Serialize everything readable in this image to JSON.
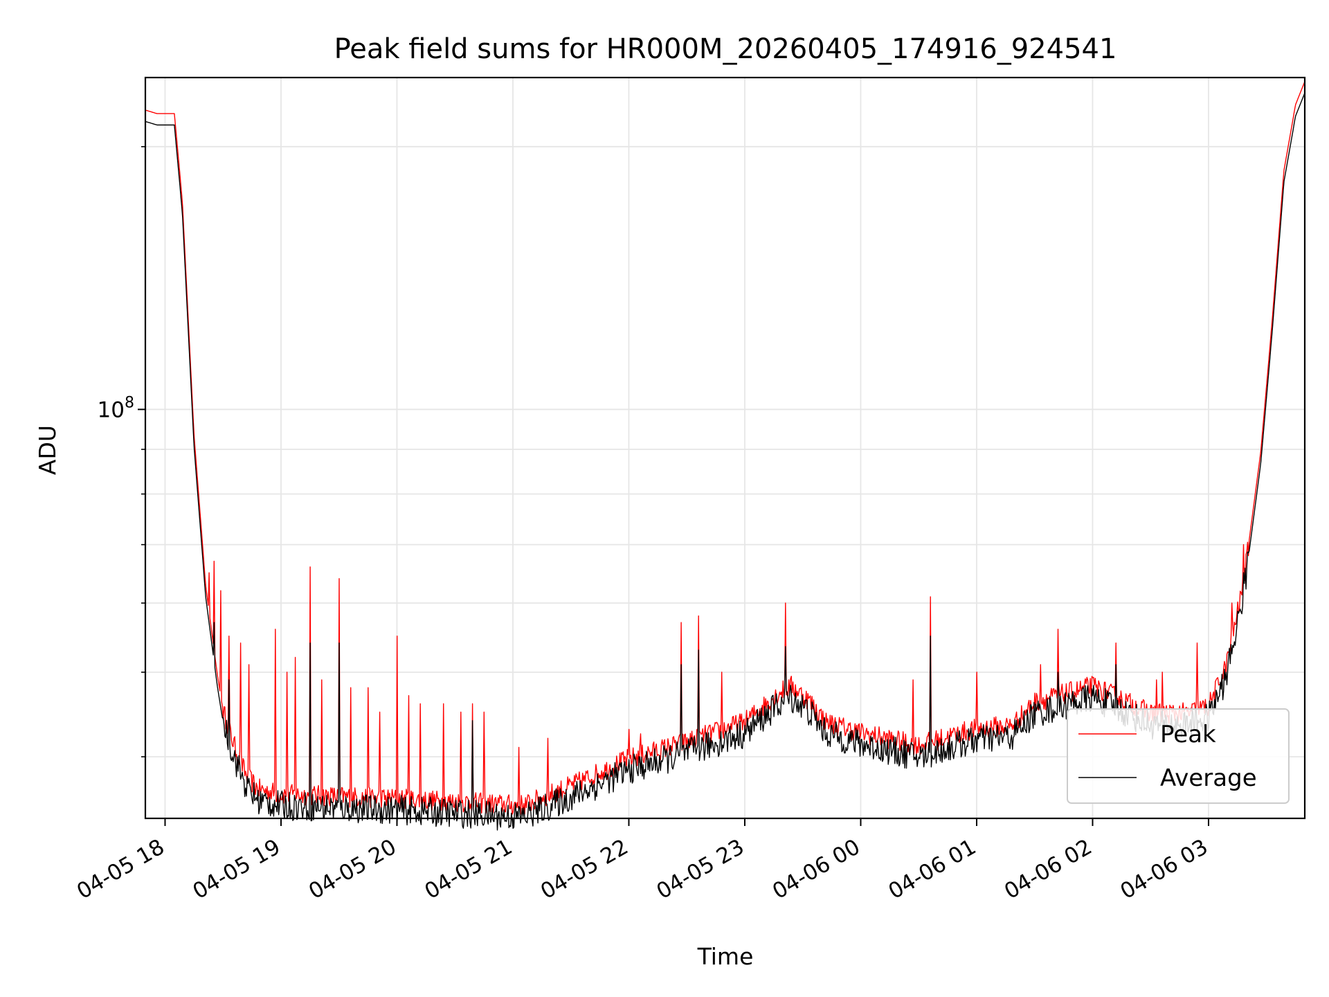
{
  "chart_data": {
    "type": "line",
    "title": "Peak field sums for HR000M_20260405_174916_924541",
    "xlabel": "Time",
    "ylabel": "ADU",
    "yscale": "log",
    "ylim": [
      34000000,
      240000000
    ],
    "xlim": [
      -0.17,
      9.83
    ],
    "grid": true,
    "legend_position": "lower-right",
    "x_units": "hours after 04-05 18:00",
    "x_tick_labels": [
      "04-05 18",
      "04-05 19",
      "04-05 20",
      "04-05 21",
      "04-05 22",
      "04-05 23",
      "04-06 00",
      "04-06 01",
      "04-06 02",
      "04-06 03"
    ],
    "x_tick_values": [
      0,
      1,
      2,
      3,
      4,
      5,
      6,
      7,
      8,
      9
    ],
    "y_major_ticks": [
      {
        "value": 100000000,
        "base": "10",
        "exp": "8"
      }
    ],
    "y_minor_ticks": [
      40000000,
      50000000,
      60000000,
      70000000,
      80000000,
      90000000,
      200000000
    ],
    "base_x": [
      -0.17,
      -0.07,
      0.08,
      0.15,
      0.25,
      0.35,
      0.45,
      0.5,
      0.6,
      0.7,
      0.8,
      1.0,
      1.5,
      2.0,
      2.5,
      3.0,
      3.1,
      3.5,
      4.0,
      4.5,
      5.0,
      5.3,
      5.4,
      5.55,
      5.7,
      6.0,
      6.5,
      7.0,
      7.3,
      7.5,
      8.0,
      8.2,
      8.5,
      8.8,
      9.0,
      9.15,
      9.3,
      9.45,
      9.55,
      9.65,
      9.75,
      9.83
    ],
    "base_y": [
      217000000,
      215000000,
      215000000,
      170000000,
      92000000,
      62000000,
      49000000,
      44500000,
      40500000,
      37500000,
      36200000,
      35700000,
      35500000,
      35300000,
      35000000,
      34700000,
      34700000,
      36500000,
      39200000,
      41000000,
      43200000,
      46700000,
      47500000,
      45800000,
      43200000,
      42000000,
      40600000,
      42500000,
      42800000,
      45500000,
      47500000,
      46200000,
      44200000,
      44200000,
      45000000,
      50000000,
      62000000,
      88000000,
      125000000,
      185000000,
      220000000,
      234000000
    ],
    "series": [
      {
        "name": "Peak",
        "color": "#ff0000",
        "spikes": [
          {
            "x": 0.38,
            "value": 65000000
          },
          {
            "x": 0.42,
            "value": 67000000
          },
          {
            "x": 0.48,
            "value": 62000000
          },
          {
            "x": 0.55,
            "value": 55000000
          },
          {
            "x": 0.65,
            "value": 54000000
          },
          {
            "x": 0.72,
            "value": 51000000
          },
          {
            "x": 0.95,
            "value": 56000000
          },
          {
            "x": 1.05,
            "value": 50000000
          },
          {
            "x": 1.12,
            "value": 52000000
          },
          {
            "x": 1.25,
            "value": 66000000
          },
          {
            "x": 1.35,
            "value": 49000000
          },
          {
            "x": 1.5,
            "value": 64000000
          },
          {
            "x": 1.6,
            "value": 48000000
          },
          {
            "x": 1.75,
            "value": 48000000
          },
          {
            "x": 1.85,
            "value": 45000000
          },
          {
            "x": 2.0,
            "value": 55000000
          },
          {
            "x": 2.1,
            "value": 47000000
          },
          {
            "x": 2.2,
            "value": 46000000
          },
          {
            "x": 2.4,
            "value": 46000000
          },
          {
            "x": 2.55,
            "value": 45000000
          },
          {
            "x": 2.65,
            "value": 46000000
          },
          {
            "x": 2.75,
            "value": 45000000
          },
          {
            "x": 3.05,
            "value": 41000000
          },
          {
            "x": 3.3,
            "value": 42000000
          },
          {
            "x": 4.0,
            "value": 43000000
          },
          {
            "x": 4.1,
            "value": 42500000
          },
          {
            "x": 4.45,
            "value": 57000000
          },
          {
            "x": 4.6,
            "value": 58000000
          },
          {
            "x": 4.8,
            "value": 50000000
          },
          {
            "x": 5.35,
            "value": 60000000
          },
          {
            "x": 6.6,
            "value": 61000000
          },
          {
            "x": 6.45,
            "value": 49000000
          },
          {
            "x": 7.0,
            "value": 50000000
          },
          {
            "x": 7.55,
            "value": 51000000
          },
          {
            "x": 7.7,
            "value": 56000000
          },
          {
            "x": 8.2,
            "value": 54000000
          },
          {
            "x": 8.55,
            "value": 49000000
          },
          {
            "x": 8.6,
            "value": 50000000
          },
          {
            "x": 8.9,
            "value": 54000000
          },
          {
            "x": 9.2,
            "value": 60000000
          },
          {
            "x": 9.3,
            "value": 70000000
          }
        ]
      },
      {
        "name": "Average",
        "color": "#000000",
        "spikes": [
          {
            "x": 0.42,
            "value": 57000000
          },
          {
            "x": 0.55,
            "value": 49000000
          },
          {
            "x": 1.25,
            "value": 54000000
          },
          {
            "x": 1.5,
            "value": 54000000
          },
          {
            "x": 2.65,
            "value": 44000000
          },
          {
            "x": 4.45,
            "value": 51000000
          },
          {
            "x": 4.6,
            "value": 53000000
          },
          {
            "x": 5.35,
            "value": 53500000
          },
          {
            "x": 6.6,
            "value": 55000000
          },
          {
            "x": 7.7,
            "value": 50000000
          },
          {
            "x": 8.2,
            "value": 51000000
          },
          {
            "x": 9.3,
            "value": 65000000
          }
        ]
      }
    ]
  }
}
